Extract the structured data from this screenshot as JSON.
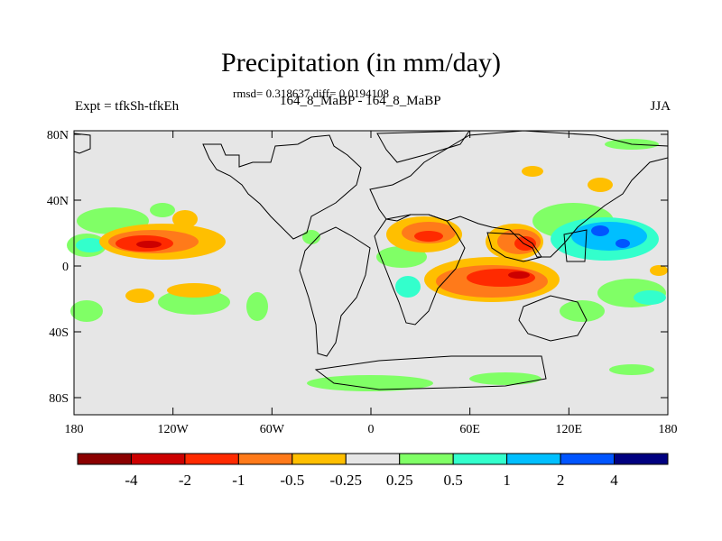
{
  "title": "Precipitation (in mm/day)",
  "stats": "rmsd= 0.318637 diff= 0.0194108",
  "left_label": "Expt = tfkSh-tfkEh",
  "center_label": "164_8_MaBP - 164_8_MaBP",
  "right_label": "JJA",
  "map": {
    "background": "#e6e6e6",
    "lon_ticks": [
      "180",
      "120W",
      "60W",
      "0",
      "60E",
      "120E",
      "180"
    ],
    "lat_ticks": [
      "80N",
      "40N",
      "0",
      "40S",
      "80S"
    ]
  },
  "colorbar": {
    "colors": [
      "#8b0000",
      "#cc0000",
      "#ff2a00",
      "#ff7a1a",
      "#ffbf00",
      "#e6e6e6",
      "#80ff66",
      "#33ffcc",
      "#00bfff",
      "#0055ff",
      "#000080"
    ],
    "labels": [
      "-4",
      "-2",
      "-1",
      "-0.5",
      "-0.25",
      "0.25",
      "0.5",
      "1",
      "2",
      "4"
    ]
  }
}
